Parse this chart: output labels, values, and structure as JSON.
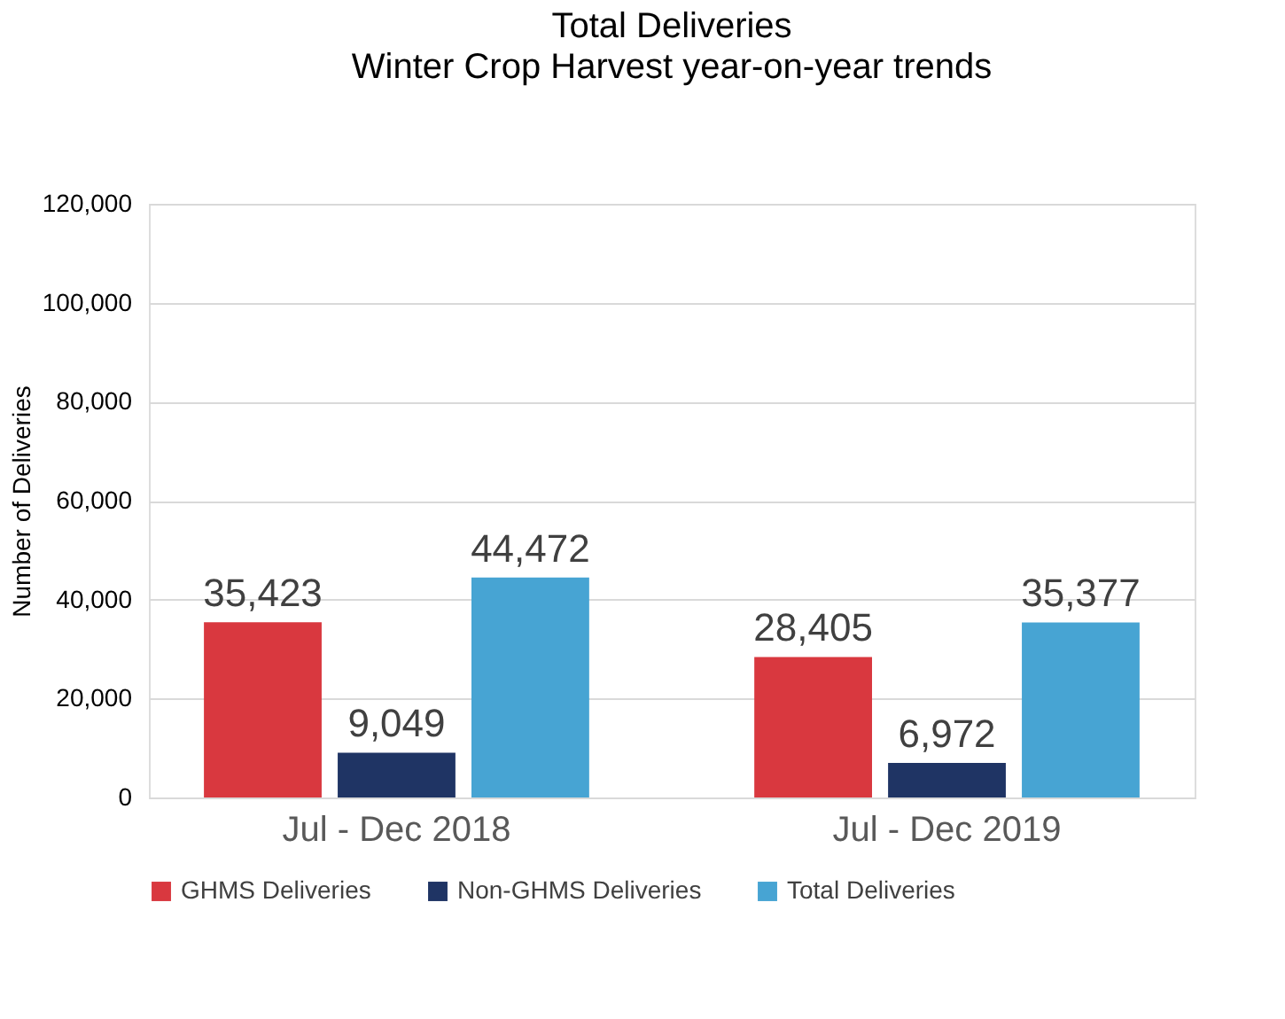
{
  "chart_data": {
    "type": "bar",
    "title": "Total Deliveries",
    "subtitle": "Winter Crop Harvest year-on-year trends",
    "ylabel": "Number of Deliveries",
    "categories": [
      "Jul - Dec 2018",
      "Jul - Dec 2019"
    ],
    "series": [
      {
        "name": "GHMS Deliveries",
        "color": "#d9383f",
        "values": [
          35423,
          28405
        ],
        "value_labels": [
          "35,423",
          "28,405"
        ]
      },
      {
        "name": "Non-GHMS Deliveries",
        "color": "#1f3464",
        "values": [
          9049,
          6972
        ],
        "value_labels": [
          "9,049",
          "6,972"
        ]
      },
      {
        "name": "Total Deliveries",
        "color": "#47a4d3",
        "values": [
          44472,
          35377
        ],
        "value_labels": [
          "44,472",
          "35,377"
        ]
      }
    ],
    "ylim": [
      0,
      120000
    ],
    "yticks": [
      0,
      {
        "value": 20000,
        "label": "20,000"
      },
      {
        "value": 40000,
        "label": "40,000"
      },
      {
        "value": 60000,
        "label": "60,000"
      },
      {
        "value": 80000,
        "label": "80,000"
      },
      {
        "value": 100000,
        "label": "100,000"
      },
      {
        "value": 120000,
        "label": "120,000"
      }
    ],
    "grid": "y",
    "legend": "bottom"
  }
}
